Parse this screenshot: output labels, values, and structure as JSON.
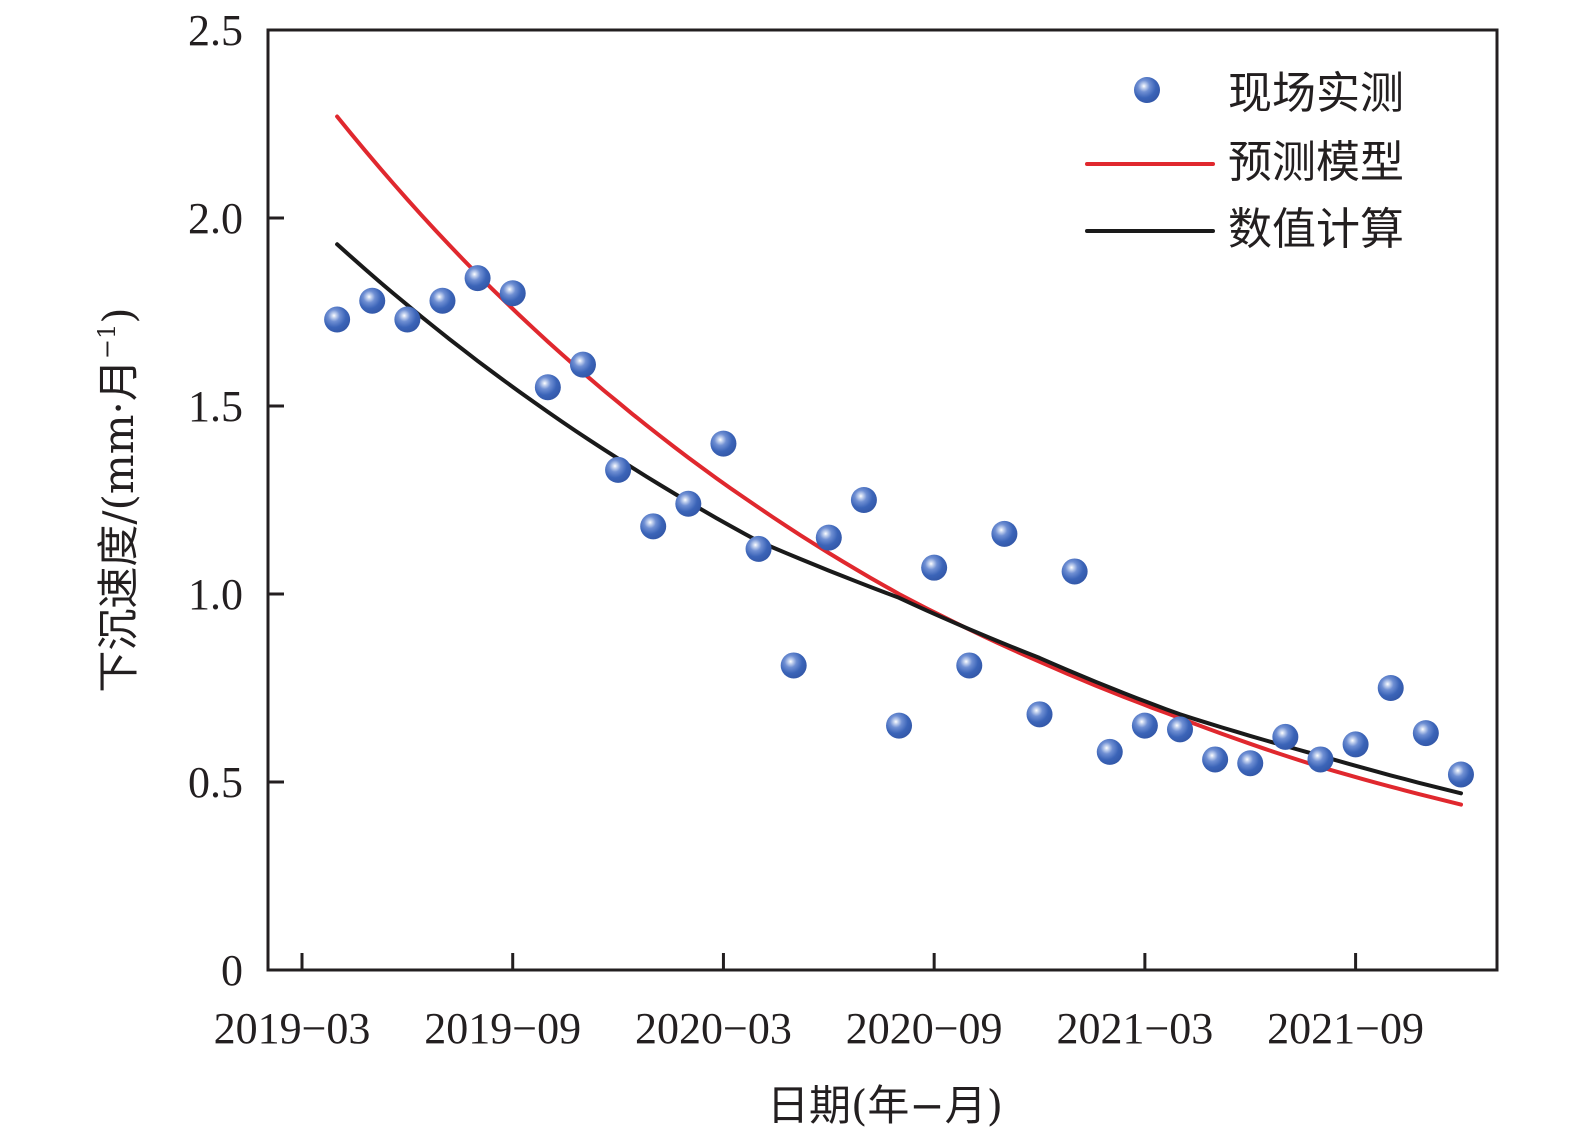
{
  "chart_data": {
    "type": "scatter",
    "title": "",
    "xlabel": "日期(年−月)",
    "ylabel": "下沉速度/(mm·月",
    "ylabel_sup": "−1",
    "ylabel_close": ")",
    "ylim": [
      0,
      2.5
    ],
    "yticks": [
      0,
      0.5,
      1.0,
      1.5,
      2.0,
      2.5
    ],
    "ytick_labels": [
      "0",
      "0.5",
      "1.0",
      "1.5",
      "2.0",
      "2.5"
    ],
    "x_unit": "months since 2019-03",
    "xlim": [
      -1,
      34
    ],
    "xticks": [
      0,
      6,
      12,
      18,
      24,
      30
    ],
    "xtick_labels": [
      "2019−03",
      "2019−09",
      "2020−03",
      "2020−09",
      "2021−03",
      "2021−09"
    ],
    "grid": false,
    "legend_position": "top-right",
    "series": [
      {
        "name": "现场实测",
        "kind": "scatter",
        "color": "#3b64b8",
        "x": [
          1,
          2,
          3,
          4,
          5,
          6,
          7,
          8,
          9,
          10,
          11,
          12,
          13,
          14,
          15,
          16,
          17,
          18,
          19,
          20,
          21,
          22,
          23,
          24,
          25,
          26,
          27,
          28,
          29,
          30,
          31,
          32,
          33
        ],
        "values": [
          1.73,
          1.78,
          1.73,
          1.78,
          1.84,
          1.8,
          1.55,
          1.61,
          1.33,
          1.18,
          1.24,
          1.4,
          1.12,
          0.81,
          1.15,
          1.25,
          0.65,
          1.07,
          0.81,
          1.16,
          0.68,
          1.06,
          0.58,
          0.65,
          0.64,
          0.56,
          0.55,
          0.62,
          0.56,
          0.6,
          0.75,
          0.63,
          0.52
        ]
      },
      {
        "name": "预测模型",
        "kind": "line",
        "color": "#e0282e",
        "x": [
          1,
          5,
          9,
          13,
          17,
          21,
          25,
          29,
          33
        ],
        "values": [
          2.27,
          1.85,
          1.51,
          1.23,
          1.0,
          0.82,
          0.67,
          0.54,
          0.44
        ]
      },
      {
        "name": "数值计算",
        "kind": "line",
        "color": "#1a1a1a",
        "x": [
          1,
          5,
          9,
          13,
          17,
          21,
          25,
          29,
          33
        ],
        "values": [
          1.93,
          1.62,
          1.36,
          1.14,
          0.99,
          0.83,
          0.68,
          0.57,
          0.47
        ]
      }
    ]
  }
}
